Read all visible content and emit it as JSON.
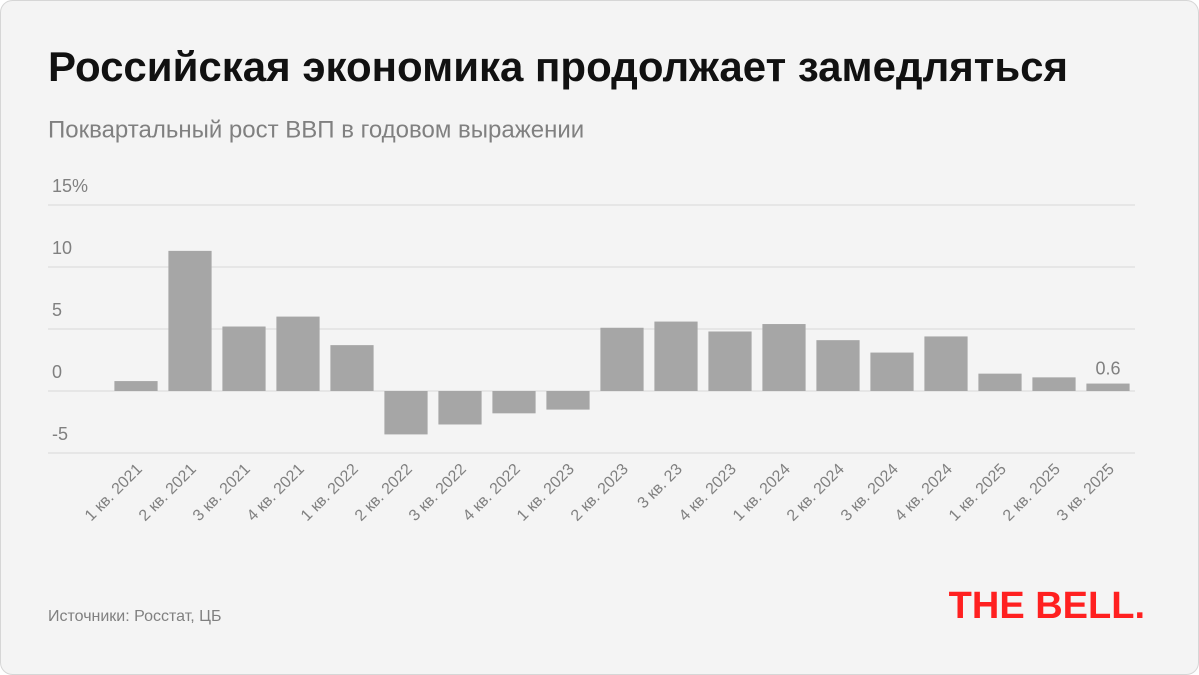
{
  "chart_data": {
    "type": "bar",
    "title": "Российская экономика продолжает замедляться",
    "subtitle": "Поквартальный рост ВВП в годовом выражении",
    "source": "Источники: Росстат, ЦБ",
    "brand": "THE BELL.",
    "categories": [
      "1 кв. 2021",
      "2 кв. 2021",
      "3 кв. 2021",
      "4 кв. 2021",
      "1 кв. 2022",
      "2 кв. 2022",
      "3 кв. 2022",
      "4 кв. 2022",
      "1 кв. 2023",
      "2 кв. 2023",
      "3 кв. 23",
      "4 кв. 2023",
      "1 кв. 2024",
      "2 кв. 2024",
      "3 кв. 2024",
      "4 кв. 2024",
      "1 кв. 2025",
      "2 кв. 2025",
      "3 кв. 2025"
    ],
    "values": [
      0.8,
      11.3,
      5.2,
      6.0,
      3.7,
      -3.5,
      -2.7,
      -1.8,
      -1.5,
      5.1,
      5.6,
      4.8,
      5.4,
      4.1,
      3.1,
      4.4,
      1.4,
      1.1,
      0.6
    ],
    "color": "#a6a6a6",
    "ylim": [
      -5,
      15
    ],
    "yticks": [
      {
        "value": 15,
        "label": "15%"
      },
      10,
      5,
      0,
      -5
    ],
    "grid": true
  }
}
